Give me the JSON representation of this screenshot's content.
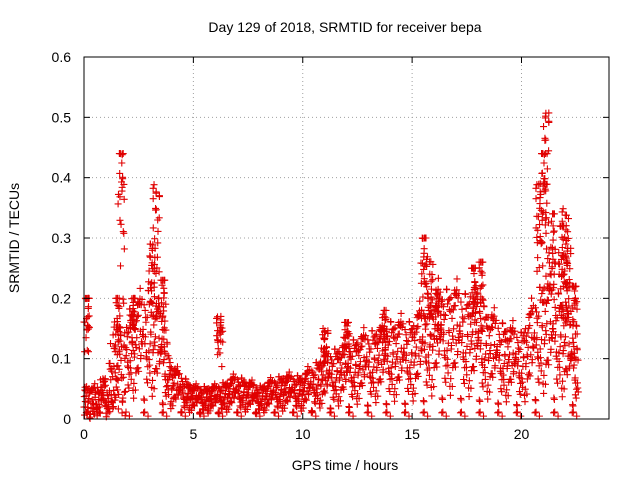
{
  "chart_data": {
    "type": "scatter",
    "title": "Day 129 of 2018, SRMTID for receiver bepa",
    "xlabel": "GPS time / hours",
    "ylabel": "SRMTID / TECUs",
    "xlim": [
      0,
      24
    ],
    "ylim": [
      0,
      0.6
    ],
    "xticks": [
      0,
      5,
      10,
      15,
      20
    ],
    "yticks": [
      0,
      0.1,
      0.2,
      0.3,
      0.4,
      0.5,
      0.6
    ],
    "xtick_labels": [
      "0",
      "5",
      "10",
      "15",
      "20"
    ],
    "ytick_labels": [
      "0",
      "0.1",
      "0.2",
      "0.3",
      "0.4",
      "0.5",
      "0.6"
    ],
    "grid": true,
    "marker": "plus",
    "color": "#e00000",
    "series": [
      {
        "name": "SRMTID",
        "profile": [
          {
            "x": 0.0,
            "y": 0.03
          },
          {
            "x": 0.5,
            "y": 0.03
          },
          {
            "x": 1.0,
            "y": 0.04
          },
          {
            "x": 1.5,
            "y": 0.08
          },
          {
            "x": 2.0,
            "y": 0.1
          },
          {
            "x": 2.5,
            "y": 0.11
          },
          {
            "x": 3.0,
            "y": 0.12
          },
          {
            "x": 3.5,
            "y": 0.1
          },
          {
            "x": 4.0,
            "y": 0.05
          },
          {
            "x": 5.0,
            "y": 0.03
          },
          {
            "x": 6.0,
            "y": 0.03
          },
          {
            "x": 7.0,
            "y": 0.04
          },
          {
            "x": 8.0,
            "y": 0.03
          },
          {
            "x": 9.0,
            "y": 0.04
          },
          {
            "x": 10.0,
            "y": 0.04
          },
          {
            "x": 11.0,
            "y": 0.06
          },
          {
            "x": 12.0,
            "y": 0.07
          },
          {
            "x": 13.0,
            "y": 0.08
          },
          {
            "x": 14.0,
            "y": 0.09
          },
          {
            "x": 15.0,
            "y": 0.09
          },
          {
            "x": 16.0,
            "y": 0.12
          },
          {
            "x": 17.0,
            "y": 0.12
          },
          {
            "x": 18.0,
            "y": 0.11
          },
          {
            "x": 19.0,
            "y": 0.09
          },
          {
            "x": 20.0,
            "y": 0.08
          },
          {
            "x": 21.0,
            "y": 0.13
          },
          {
            "x": 22.0,
            "y": 0.11
          },
          {
            "x": 22.6,
            "y": 0.06
          }
        ],
        "peaks": [
          {
            "x": 1.7,
            "y": 0.44
          },
          {
            "x": 1.5,
            "y": 0.2
          },
          {
            "x": 2.2,
            "y": 0.2
          },
          {
            "x": 3.3,
            "y": 0.39
          },
          {
            "x": 3.1,
            "y": 0.29
          },
          {
            "x": 3.6,
            "y": 0.23
          },
          {
            "x": 0.1,
            "y": 0.2
          },
          {
            "x": 6.2,
            "y": 0.17
          },
          {
            "x": 11.0,
            "y": 0.15
          },
          {
            "x": 12.0,
            "y": 0.16
          },
          {
            "x": 13.7,
            "y": 0.18
          },
          {
            "x": 15.5,
            "y": 0.3
          },
          {
            "x": 15.8,
            "y": 0.27
          },
          {
            "x": 16.2,
            "y": 0.2
          },
          {
            "x": 17.8,
            "y": 0.25
          },
          {
            "x": 18.1,
            "y": 0.26
          },
          {
            "x": 20.8,
            "y": 0.39
          },
          {
            "x": 21.1,
            "y": 0.52
          },
          {
            "x": 21.0,
            "y": 0.44
          },
          {
            "x": 21.4,
            "y": 0.34
          },
          {
            "x": 21.8,
            "y": 0.32
          },
          {
            "x": 22.0,
            "y": 0.35
          },
          {
            "x": 22.1,
            "y": 0.29
          },
          {
            "x": 22.4,
            "y": 0.22
          }
        ]
      }
    ]
  }
}
